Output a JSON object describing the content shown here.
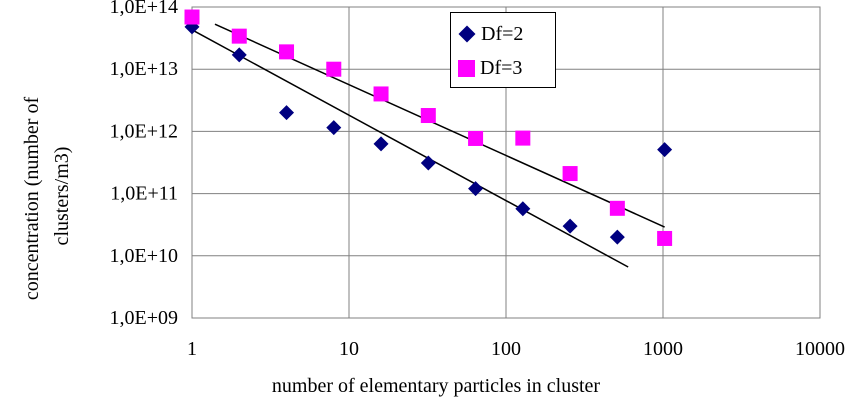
{
  "chart_data": {
    "type": "scatter",
    "xlabel": "number of elementary particles in cluster",
    "ylabel": "concentration (number of clusters/m3)",
    "xscale": "log",
    "yscale": "log",
    "xlim": [
      1,
      10000
    ],
    "ylim": [
      1000000000.0,
      100000000000000.0
    ],
    "x_ticks": [
      1,
      10,
      100,
      1000,
      10000
    ],
    "x_tick_labels": [
      "1",
      "10",
      "100",
      "1000",
      "10000"
    ],
    "y_ticks": [
      1000000000.0,
      10000000000.0,
      100000000000.0,
      1000000000000.0,
      10000000000000.0,
      100000000000000.0
    ],
    "y_tick_labels": [
      "1,0E+09",
      "1,0E+10",
      "1,0E+11",
      "1,0E+12",
      "1,0E+13",
      "1,0E+14"
    ],
    "grid": true,
    "legend_position": "top-center",
    "series": [
      {
        "name": "Df=2",
        "marker": "diamond",
        "color": "#000080",
        "x": [
          1,
          2,
          4,
          8,
          16,
          32,
          64,
          128,
          256,
          512,
          1024
        ],
        "y": [
          48000000000000.0,
          17000000000000.0,
          2000000000000.0,
          1150000000000.0,
          630000000000.0,
          310000000000.0,
          120000000000.0,
          57000000000.0,
          30000000000.0,
          20000000000.0,
          510000000000.0
        ],
        "trendline": {
          "x": [
            1,
            600
          ],
          "y": [
            43000000000000.0,
            6600000000.0
          ]
        }
      },
      {
        "name": "Df=3",
        "marker": "square",
        "color": "#ff00ff",
        "x": [
          1,
          2,
          4,
          8,
          16,
          32,
          64,
          128,
          256,
          512,
          1024
        ],
        "y": [
          69000000000000.0,
          34000000000000.0,
          19000000000000.0,
          10000000000000.0,
          4000000000000.0,
          1800000000000.0,
          770000000000.0,
          780000000000.0,
          210000000000.0,
          58000000000.0,
          19000000000.0
        ],
        "trendline": {
          "x": [
            1.4,
            1024
          ],
          "y": [
            53000000000000.0,
            29000000000.0
          ]
        }
      }
    ]
  }
}
